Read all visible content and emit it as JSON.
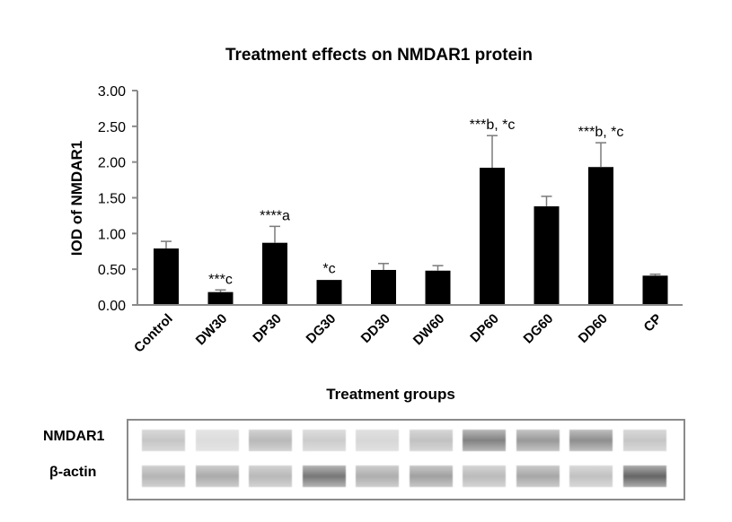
{
  "chart_data": {
    "type": "bar",
    "title": "Treatment effects on NMDAR1 protein",
    "xlabel": "Treatment groups",
    "ylabel": "IOD of NMDAR1",
    "ylim": [
      0,
      3.0
    ],
    "yticks": [
      0,
      0.5,
      1.0,
      1.5,
      2.0,
      2.5,
      3.0
    ],
    "ytick_labels": [
      "0.00",
      "0.50",
      "1.00",
      "1.50",
      "2.00",
      "2.50",
      "3.00"
    ],
    "grid": false,
    "legend": "none",
    "bar_color": "#000000",
    "error_color": "#7a7a7a",
    "categories": [
      "Control",
      "DW30",
      "DP30",
      "DG30",
      "DD30",
      "DW60",
      "DP60",
      "DG60",
      "DD60",
      "CP"
    ],
    "values": [
      0.79,
      0.18,
      0.87,
      0.35,
      0.49,
      0.48,
      1.92,
      1.38,
      1.93,
      0.41
    ],
    "errors": [
      0.1,
      0.03,
      0.23,
      0.01,
      0.09,
      0.07,
      0.45,
      0.14,
      0.34,
      0.02
    ],
    "annotations": [
      "",
      "***c",
      "****a",
      "*c",
      "",
      "",
      "***b, *c",
      "",
      "***b, *c",
      ""
    ]
  },
  "blot": {
    "rows": [
      {
        "label": "NMDAR1",
        "intensities": [
          0.22,
          0.08,
          0.3,
          0.18,
          0.12,
          0.25,
          0.62,
          0.48,
          0.55,
          0.22
        ]
      },
      {
        "label": "β-actin",
        "intensities": [
          0.32,
          0.38,
          0.3,
          0.68,
          0.36,
          0.44,
          0.28,
          0.4,
          0.24,
          0.78
        ]
      }
    ]
  }
}
